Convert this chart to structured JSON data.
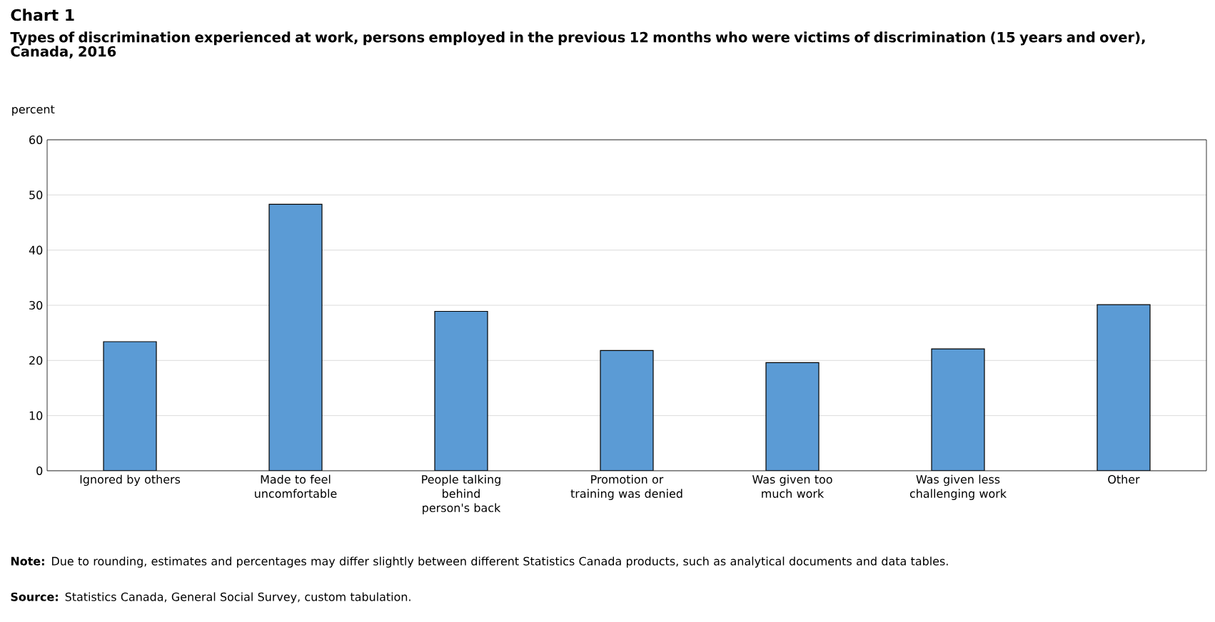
{
  "chart_data": {
    "type": "bar",
    "title": "Chart 1",
    "subtitle": "Types of discrimination  experienced at work, persons employed in the previous 12 months who were victims of discrimination  (15 years and over), Canada, 2016",
    "ylabel": "percent",
    "categories": [
      "Ignored by others",
      "Made to feel uncomfortable",
      "People talking behind person's back",
      "Promotion or training was denied",
      "Was given too much work",
      "Was given less challenging work",
      "Other"
    ],
    "values": [
      23.4,
      48.3,
      28.9,
      21.8,
      19.6,
      22.1,
      30.1
    ],
    "color": "#5b9bd5",
    "ylim": [
      0,
      60
    ],
    "yticks": [
      0,
      10,
      20,
      30,
      40,
      50,
      60
    ],
    "grid": "y",
    "annotations": [
      "**Note:** Due to rounding, estimates and percentages may differ slightly between different Statistics Canada products, such as analytical documents and data tables.",
      "**Source:** Statistics Canada, General Social Survey, custom tabulation."
    ]
  }
}
